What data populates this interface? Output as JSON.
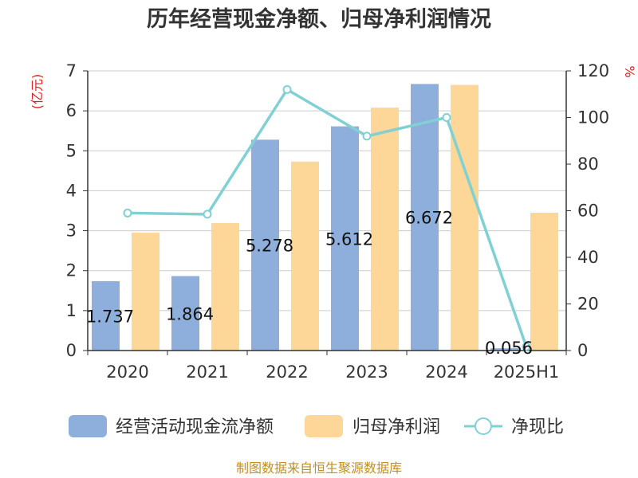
{
  "chart_data": {
    "type": "bar",
    "title": "历年经营现金净额、归母净利润情况",
    "left_unit": "(亿元)",
    "right_unit": "%",
    "categories": [
      "2020",
      "2021",
      "2022",
      "2023",
      "2024",
      "2025H1"
    ],
    "ylim_left": [
      0,
      7
    ],
    "yticks_left": [
      "0",
      "1",
      "2",
      "3",
      "4",
      "5",
      "6",
      "7"
    ],
    "ylim_right": [
      0,
      120
    ],
    "yticks_right": [
      "0",
      "20",
      "40",
      "60",
      "80",
      "100",
      "120"
    ],
    "series": [
      {
        "name": "经营活动现金流净额",
        "kind": "bar",
        "axis": "left",
        "color": "#8eaedb",
        "values": [
          1.737,
          1.864,
          5.278,
          5.612,
          6.672,
          0.056
        ],
        "labels": [
          "1.737",
          "1.864",
          "5.278",
          "5.612",
          "6.672",
          "0.056"
        ]
      },
      {
        "name": "归母净利润",
        "kind": "bar",
        "axis": "left",
        "color": "#fdd797",
        "values": [
          2.95,
          3.19,
          4.73,
          6.08,
          6.65,
          3.45
        ]
      },
      {
        "name": "净现比",
        "kind": "line",
        "axis": "right",
        "color": "#80d0d4",
        "values": [
          59,
          58.5,
          112,
          92,
          100,
          1.6
        ]
      }
    ],
    "grid": true,
    "legend_position": "bottom"
  },
  "source": "制图数据来自恒生聚源数据库"
}
